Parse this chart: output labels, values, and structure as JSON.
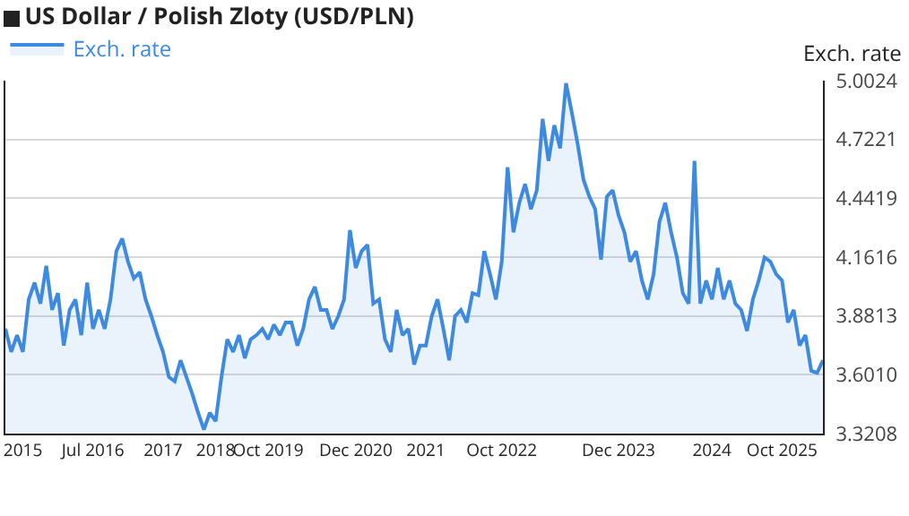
{
  "chart_data": {
    "type": "area",
    "title": "US Dollar / Polish Zloty (USD/PLN)",
    "ylabel": "Exch. rate",
    "legend": "top left",
    "grid": "y",
    "categories": [
      null,
      null,
      null,
      "2015",
      null,
      null,
      null,
      null,
      null,
      null,
      null,
      null,
      null,
      null,
      null,
      "Jul 2016",
      null,
      null,
      null,
      null,
      null,
      null,
      null,
      null,
      null,
      null,
      null,
      "2017",
      null,
      null,
      null,
      null,
      null,
      null,
      null,
      null,
      "2018",
      null,
      null,
      null,
      null,
      null,
      null,
      null,
      null,
      "Oct 2019",
      null,
      null,
      null,
      null,
      null,
      null,
      null,
      null,
      null,
      null,
      null,
      null,
      null,
      null,
      "Dec 2020",
      null,
      null,
      null,
      null,
      null,
      null,
      null,
      null,
      null,
      null,
      null,
      "2021",
      null,
      null,
      null,
      null,
      null,
      null,
      null,
      null,
      null,
      null,
      null,
      null,
      "Oct 2022",
      null,
      null,
      null,
      null,
      null,
      null,
      null,
      null,
      null,
      null,
      null,
      null,
      null,
      null,
      null,
      null,
      null,
      null,
      null,
      "Dec 2023",
      null,
      null,
      null,
      null,
      null,
      null,
      null,
      null,
      null,
      null,
      null,
      null,
      null,
      null,
      null,
      "2024",
      null,
      null,
      null,
      null,
      null,
      null,
      null,
      null,
      null,
      null,
      null,
      "Oct 2025",
      null,
      null,
      null,
      null,
      null,
      null,
      null
    ],
    "ylim": [
      3.3208,
      5.0024
    ],
    "yticks": [
      3.3208,
      {
        "value": 3.601,
        "label": "3.6010"
      },
      3.8813,
      4.1616,
      4.4419,
      4.7221,
      5.0024
    ],
    "series": [
      {
        "name": "Exch. rate",
        "color": "#3d8ae0",
        "values": [
          3.82,
          3.71,
          3.79,
          3.71,
          3.96,
          4.04,
          3.94,
          4.12,
          3.91,
          3.99,
          3.74,
          3.91,
          3.96,
          3.79,
          4.04,
          3.82,
          3.91,
          3.82,
          3.96,
          4.19,
          4.25,
          4.14,
          4.06,
          4.09,
          3.96,
          3.88,
          3.79,
          3.71,
          3.59,
          3.57,
          3.67,
          3.59,
          3.51,
          3.42,
          3.34,
          3.42,
          3.38,
          3.59,
          3.77,
          3.71,
          3.79,
          3.68,
          3.77,
          3.79,
          3.82,
          3.77,
          3.84,
          3.79,
          3.85,
          3.85,
          3.74,
          3.82,
          3.96,
          4.02,
          3.91,
          3.91,
          3.82,
          3.88,
          3.96,
          4.29,
          4.11,
          4.19,
          4.22,
          3.94,
          3.96,
          3.77,
          3.71,
          3.91,
          3.79,
          3.82,
          3.65,
          3.74,
          3.74,
          3.88,
          3.96,
          3.82,
          3.67,
          3.88,
          3.91,
          3.85,
          3.99,
          3.98,
          4.19,
          4.08,
          3.96,
          4.14,
          4.59,
          4.28,
          4.42,
          4.51,
          4.39,
          4.48,
          4.82,
          4.62,
          4.79,
          4.68,
          4.99,
          4.85,
          4.7,
          4.53,
          4.45,
          4.39,
          4.15,
          4.45,
          4.48,
          4.36,
          4.28,
          4.14,
          4.19,
          4.05,
          3.96,
          4.08,
          4.33,
          4.42,
          4.28,
          4.16,
          3.99,
          3.94,
          4.62,
          3.94,
          4.05,
          3.96,
          4.11,
          3.96,
          4.05,
          3.94,
          3.91,
          3.81,
          3.96,
          4.05,
          4.16,
          4.14,
          4.08,
          4.05,
          3.85,
          3.91,
          3.74,
          3.79,
          3.62,
          3.61,
          3.67
        ]
      }
    ]
  }
}
